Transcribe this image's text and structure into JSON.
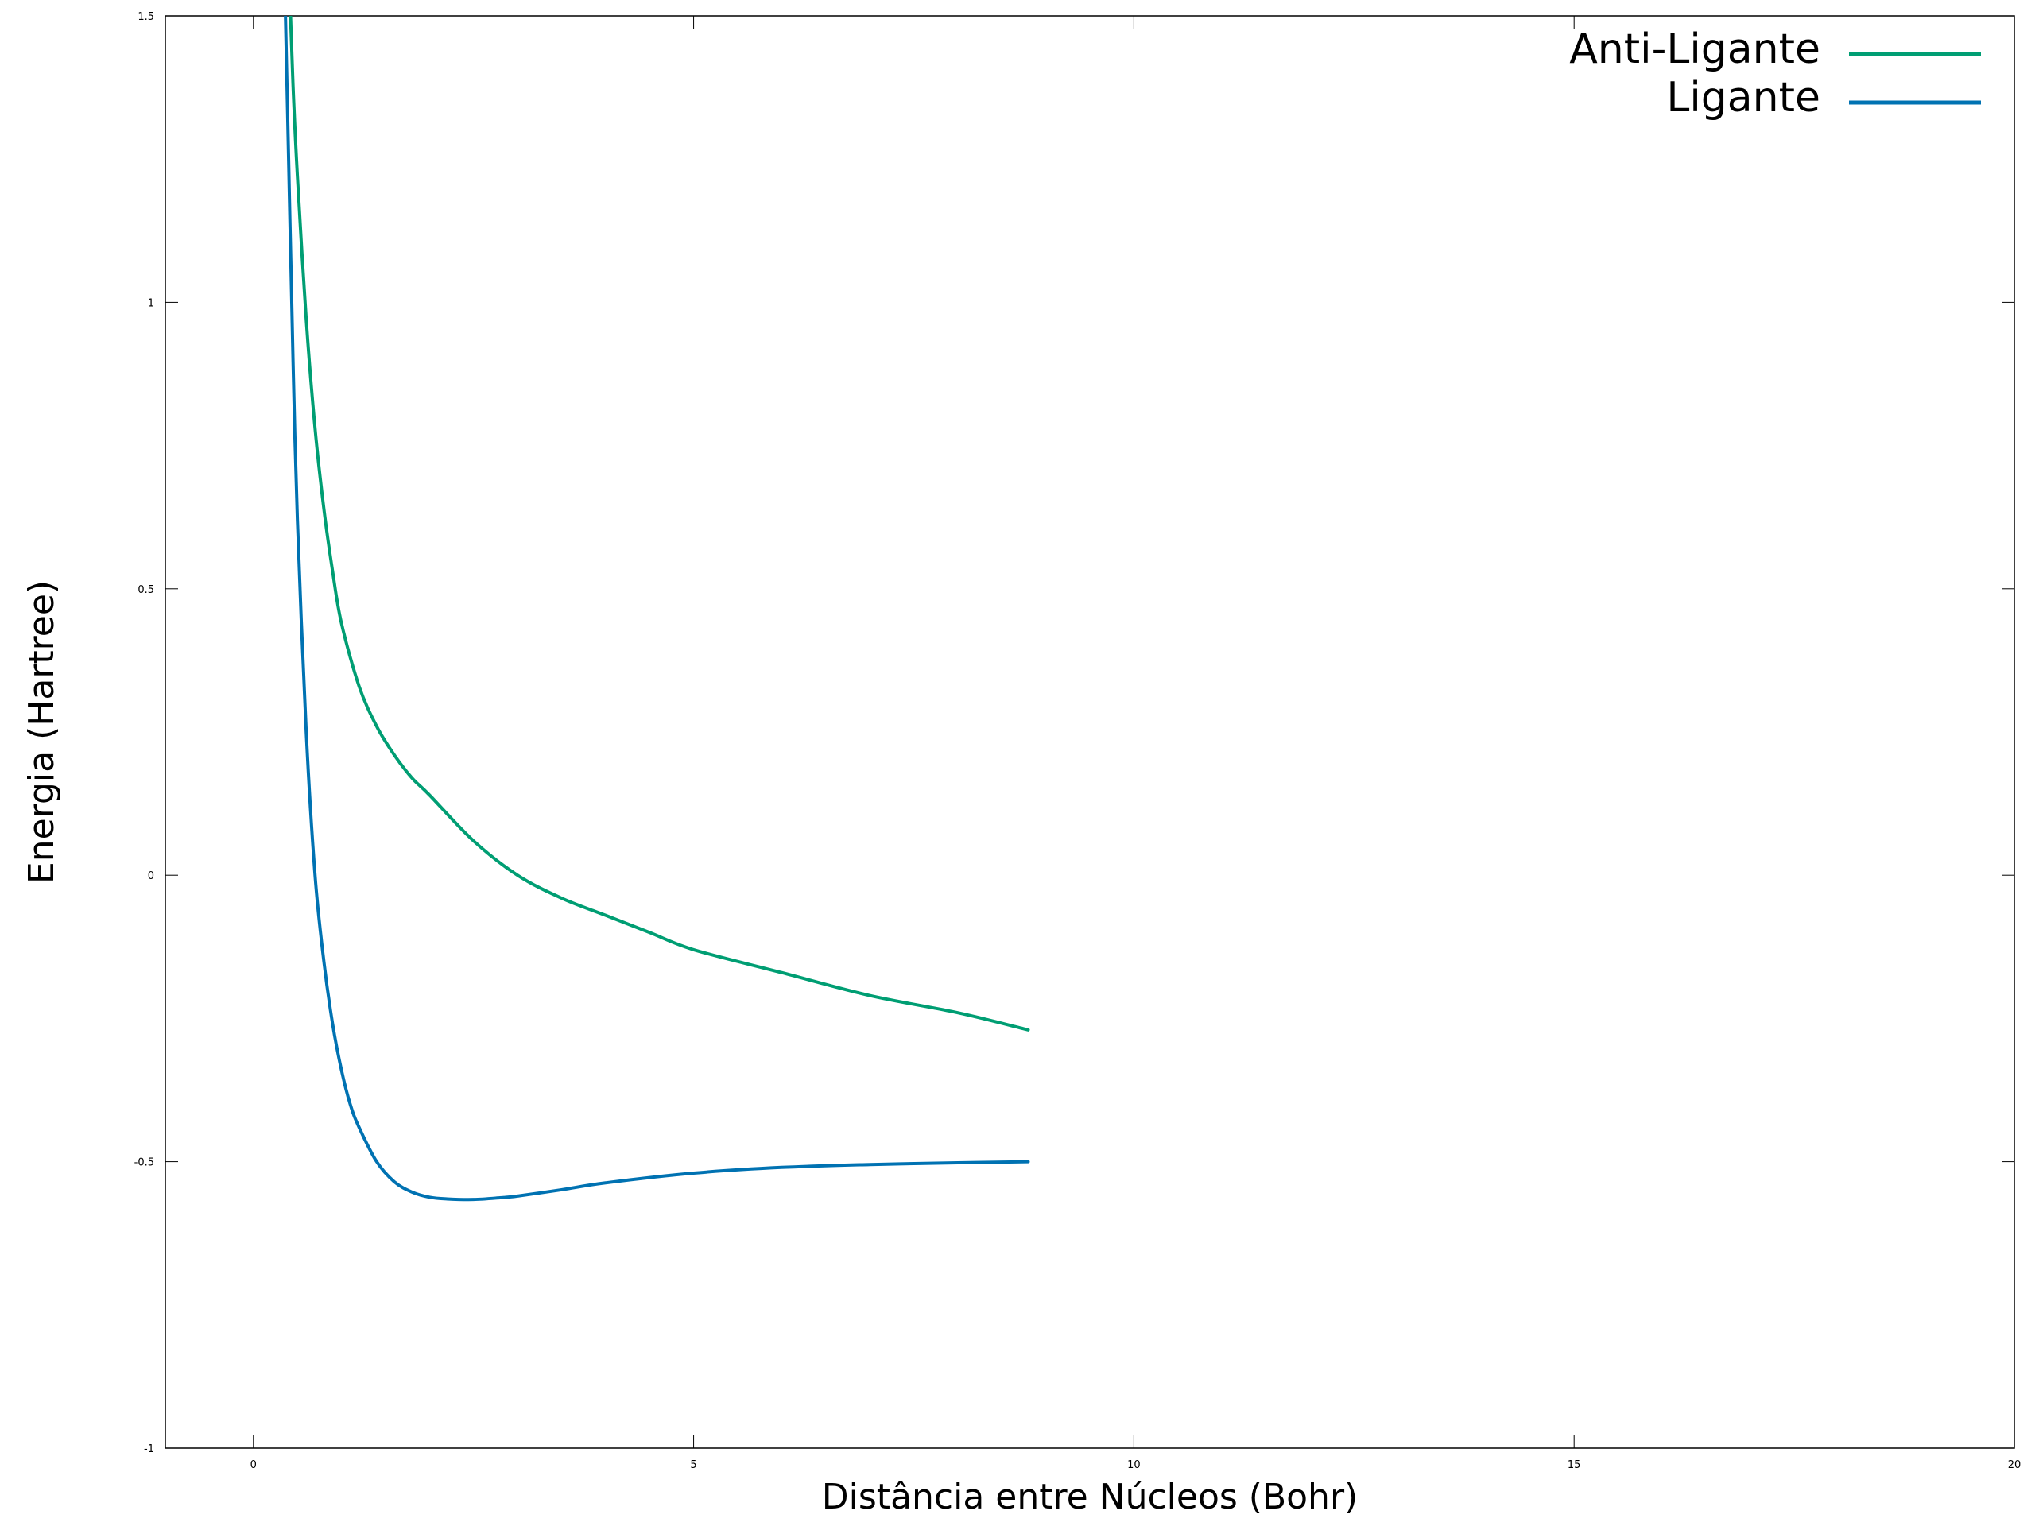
{
  "chart_data": {
    "type": "line",
    "title": "",
    "xlabel": "Distância entre Núcleos (Bohr)",
    "ylabel": "Energia (Hartree)",
    "xlim": [
      -1,
      20
    ],
    "ylim": [
      -1,
      1.5
    ],
    "x_ticks": [
      {
        "value": 0,
        "label": "0"
      },
      {
        "value": 5,
        "label": "5"
      },
      {
        "value": 10,
        "label": "10"
      },
      {
        "value": 15,
        "label": "15"
      },
      {
        "value": 20,
        "label": "20"
      }
    ],
    "y_ticks": [
      {
        "value": -1,
        "label": "-1"
      },
      {
        "value": -0.5,
        "label": "-0.5"
      },
      {
        "value": 0,
        "label": "0"
      },
      {
        "value": 0.5,
        "label": "0.5"
      },
      {
        "value": 1,
        "label": "1"
      },
      {
        "value": 1.5,
        "label": "1.5"
      }
    ],
    "grid": false,
    "legend_position": "top-right",
    "series": [
      {
        "name": "Anti-Ligante",
        "color": "#009E73",
        "x": [
          0.4,
          0.45,
          0.5,
          0.6,
          0.7,
          0.8,
          0.9,
          1.0,
          1.2,
          1.4,
          1.6,
          1.8,
          2.0,
          2.5,
          3.0,
          3.5,
          4.0,
          4.5,
          5.0,
          6.0,
          7.0,
          8.0,
          8.8
        ],
        "y": [
          1.6,
          1.38,
          1.22,
          0.97,
          0.78,
          0.64,
          0.53,
          0.44,
          0.33,
          0.26,
          0.21,
          0.17,
          0.14,
          0.06,
          0.0,
          -0.04,
          -0.07,
          -0.1,
          -0.13,
          -0.17,
          -0.21,
          -0.24,
          -0.27
        ]
      },
      {
        "name": "Ligante",
        "color": "#0072B2",
        "x": [
          0.35,
          0.4,
          0.45,
          0.5,
          0.6,
          0.7,
          0.8,
          0.9,
          1.0,
          1.1,
          1.2,
          1.4,
          1.6,
          1.8,
          2.0,
          2.2,
          2.5,
          2.8,
          3.0,
          3.5,
          4.0,
          5.0,
          6.0,
          7.0,
          8.0,
          8.8
        ],
        "y": [
          1.6,
          1.25,
          0.9,
          0.62,
          0.25,
          0.0,
          -0.15,
          -0.26,
          -0.34,
          -0.4,
          -0.44,
          -0.5,
          -0.535,
          -0.553,
          -0.562,
          -0.565,
          -0.566,
          -0.563,
          -0.56,
          -0.549,
          -0.537,
          -0.52,
          -0.51,
          -0.505,
          -0.502,
          -0.5
        ]
      }
    ]
  }
}
